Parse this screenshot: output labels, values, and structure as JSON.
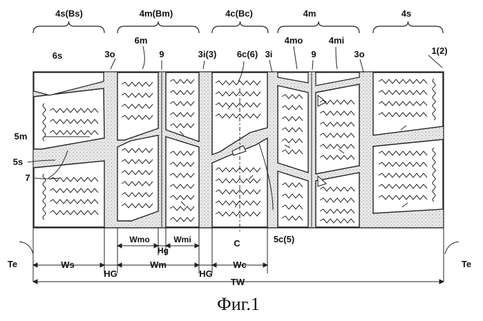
{
  "figure": {
    "caption": "Фиг.1",
    "region_labels": [
      "4s(Bs)",
      "4m(Bm)",
      "4c(Bc)",
      "4m",
      "4s"
    ],
    "reference_labels": {
      "tire": "1(2)",
      "shoulder_block": "6s",
      "outer_groove_left": "3o",
      "middle_block_top": "6m",
      "sipe_left": "9",
      "inner_groove_left": "3i(3)",
      "center_block": "6c(6)",
      "inner_groove_right": "3i",
      "middle_outer": "4mo",
      "sipe_right": "9",
      "middle_inner": "4mi",
      "outer_groove_right": "3o",
      "middle_lug": "5m",
      "shoulder_lug": "5s",
      "sipe_wavy": "7",
      "center_lug": "5c(5)",
      "centerline": "C"
    },
    "dimensions": {
      "wmo": "Wmo",
      "wmi": "Wmi",
      "hg_small": "Hg",
      "te_left": "Te",
      "te_right": "Te",
      "ws": "Ws",
      "hg_left": "HG",
      "wm": "Wm",
      "hg_right": "HG",
      "wc": "Wc",
      "tw": "TW"
    }
  }
}
